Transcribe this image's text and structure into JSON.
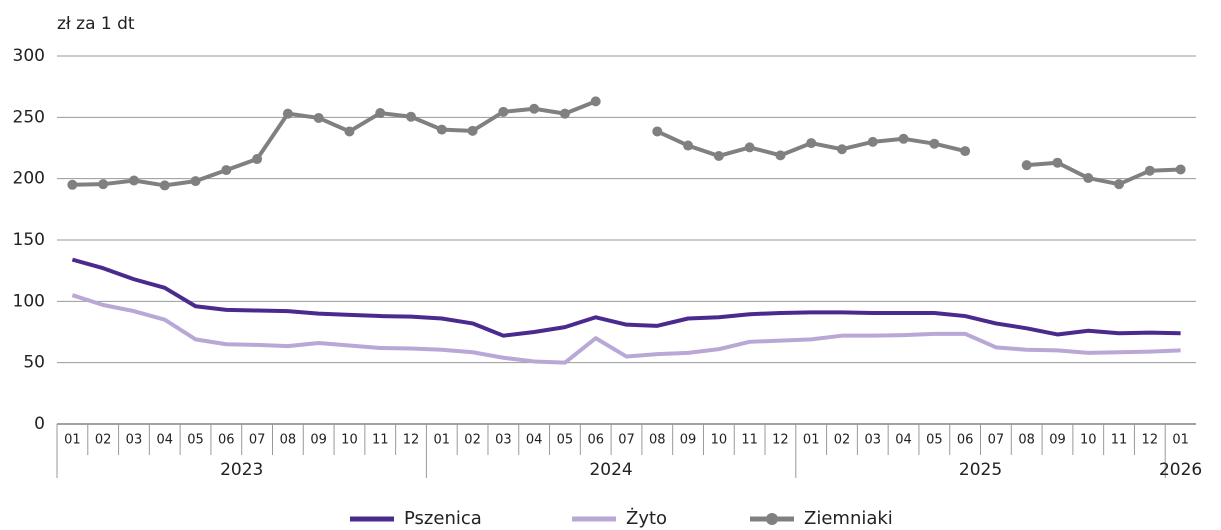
{
  "chart_data": {
    "type": "line",
    "y_axis_label": "zł za 1 dt",
    "categories": [
      "01",
      "02",
      "03",
      "04",
      "05",
      "06",
      "07",
      "08",
      "09",
      "10",
      "11",
      "12",
      "01",
      "02",
      "03",
      "04",
      "05",
      "06",
      "07",
      "08",
      "09",
      "10",
      "11",
      "12",
      "01",
      "02",
      "03",
      "04",
      "05",
      "06",
      "07",
      "08",
      "09",
      "10",
      "11",
      "12",
      "01"
    ],
    "years": [
      "2023",
      "2024",
      "2025",
      "2026"
    ],
    "ylim": [
      0,
      300
    ],
    "yticks": [
      0,
      50,
      100,
      150,
      200,
      250,
      300
    ],
    "grid": true,
    "legend": "bottom",
    "series": [
      {
        "name": "Pszenica",
        "color": "#4b2a8e",
        "markers": false,
        "values": [
          134,
          127,
          118,
          111,
          96,
          93,
          92.5,
          92,
          90,
          89,
          88,
          87.5,
          86,
          82,
          72,
          75,
          79,
          87,
          81,
          80,
          86,
          87,
          89.5,
          90.5,
          91,
          91,
          90.5,
          90.5,
          90.5,
          88,
          82,
          78,
          73,
          76,
          74,
          74.5,
          74
        ]
      },
      {
        "name": "Żyto",
        "color": "#b9a7d6",
        "markers": false,
        "values": [
          105,
          97,
          92,
          85,
          69,
          65,
          64.5,
          63.5,
          66,
          64,
          62,
          61.5,
          60.5,
          58.5,
          54,
          51,
          50,
          70,
          55,
          57,
          58,
          61,
          67,
          68,
          69,
          72,
          72,
          72.5,
          73.5,
          73.5,
          62.5,
          60.5,
          60,
          58,
          58.5,
          59,
          60
        ]
      },
      {
        "name": "Ziemniaki",
        "color": "#808080",
        "markers": true,
        "values": [
          195,
          195.5,
          198.5,
          194.5,
          198,
          207,
          216,
          253,
          249.5,
          238.5,
          253.5,
          250.5,
          240,
          239,
          254.5,
          257,
          253,
          263,
          null,
          238.5,
          227,
          218.5,
          225.5,
          219,
          229,
          224,
          230,
          232.5,
          228.5,
          222.5,
          null,
          211,
          213,
          200.5,
          195.5,
          206.5,
          207.5
        ]
      }
    ]
  }
}
